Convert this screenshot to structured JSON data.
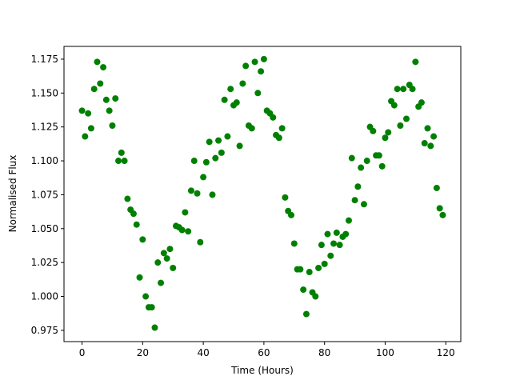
{
  "chart_data": {
    "type": "scatter",
    "x_label": "Time (Hours)",
    "y_label": "Normalised Flux",
    "color": "#008000",
    "x": [
      0,
      1,
      2,
      3,
      4,
      5,
      6,
      7,
      8,
      9,
      10,
      11,
      12,
      13,
      14,
      15,
      16,
      17,
      18,
      19,
      20,
      21,
      22,
      23,
      24,
      25,
      26,
      27,
      28,
      29,
      30,
      31,
      32,
      33,
      34,
      35,
      36,
      37,
      38,
      39,
      40,
      41,
      42,
      43,
      44,
      45,
      46,
      47,
      48,
      49,
      50,
      51,
      52,
      53,
      54,
      55,
      56,
      57,
      58,
      59,
      60,
      61,
      62,
      63,
      64,
      65,
      66,
      67,
      68,
      69,
      70,
      71,
      72,
      73,
      74,
      75,
      76,
      77,
      78,
      79,
      80,
      81,
      82,
      83,
      84,
      85,
      86,
      87,
      88,
      89,
      90,
      91,
      92,
      93,
      94,
      95,
      96,
      97,
      98,
      99,
      100,
      101,
      102,
      103,
      104,
      105,
      106,
      107,
      108,
      109,
      110,
      111,
      112,
      113,
      114,
      115,
      116,
      117,
      118,
      119
    ],
    "values": [
      1.137,
      1.118,
      1.135,
      1.124,
      1.153,
      1.173,
      1.157,
      1.169,
      1.145,
      1.137,
      1.126,
      1.146,
      1.1,
      1.106,
      1.1,
      1.072,
      1.064,
      1.061,
      1.053,
      1.014,
      1.042,
      1.0,
      0.992,
      0.992,
      0.977,
      1.025,
      1.01,
      1.032,
      1.028,
      1.035,
      1.021,
      1.052,
      1.051,
      1.049,
      1.062,
      1.048,
      1.078,
      1.1,
      1.076,
      1.04,
      1.088,
      1.099,
      1.114,
      1.075,
      1.102,
      1.115,
      1.106,
      1.145,
      1.118,
      1.153,
      1.141,
      1.143,
      1.111,
      1.157,
      1.17,
      1.126,
      1.124,
      1.173,
      1.15,
      1.166,
      1.175,
      1.137,
      1.135,
      1.132,
      1.119,
      1.117,
      1.124,
      1.073,
      1.063,
      1.06,
      1.039,
      1.02,
      1.02,
      1.005,
      0.987,
      1.018,
      1.003,
      1.0,
      1.021,
      1.038,
      1.024,
      1.046,
      1.03,
      1.039,
      1.047,
      1.038,
      1.044,
      1.046,
      1.056,
      1.102,
      1.071,
      1.081,
      1.095,
      1.068,
      1.1,
      1.125,
      1.122,
      1.104,
      1.104,
      1.096,
      1.117,
      1.121,
      1.144,
      1.141,
      1.153,
      1.126,
      1.153,
      1.131,
      1.156,
      1.153,
      1.173,
      1.14,
      1.143,
      1.113,
      1.124,
      1.111,
      1.118,
      1.08,
      1.065,
      1.06
    ],
    "xlim": [
      -5.95,
      124.95
    ],
    "xticks": [
      0,
      20,
      40,
      60,
      80,
      100,
      120
    ],
    "ylim": [
      0.9667,
      1.1844
    ],
    "yticks": [
      0.975,
      {
        "value": 1,
        "label": "1.000"
      },
      1.025,
      {
        "value": 1.05,
        "label": "1.050"
      },
      1.075,
      {
        "value": 1.1,
        "label": "1.100"
      },
      1.125,
      {
        "value": 1.15,
        "label": "1.150"
      },
      1.175
    ]
  }
}
